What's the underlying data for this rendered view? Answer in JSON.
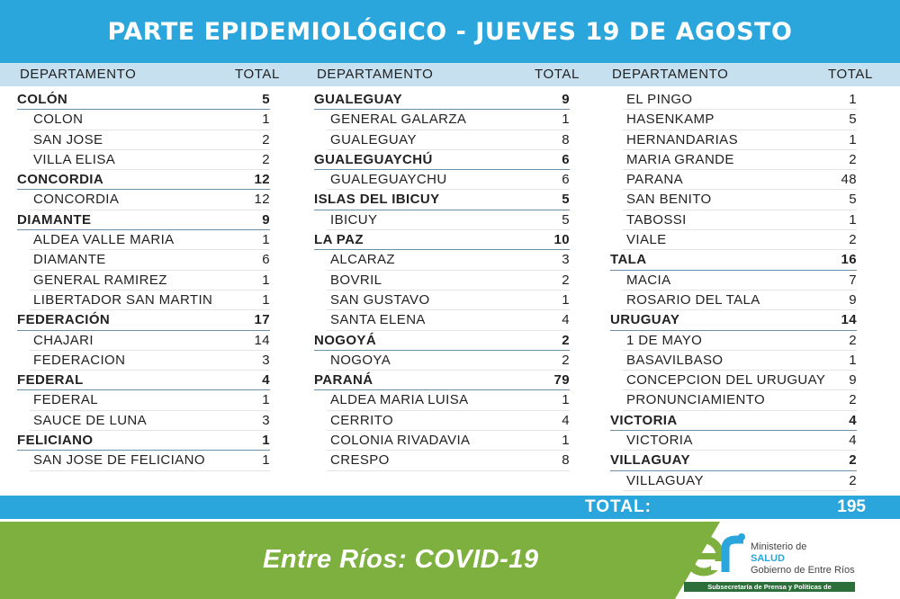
{
  "header": {
    "title": "PARTE EPIDEMIOLÓGICO - JUEVES 19 DE AGOSTO"
  },
  "column_headers": {
    "department": "DEPARTAMENTO",
    "total": "TOTAL"
  },
  "columns": [
    [
      {
        "type": "dept",
        "name": "COLÓN",
        "value": "5"
      },
      {
        "type": "city",
        "name": "COLON",
        "value": "1"
      },
      {
        "type": "city",
        "name": "SAN JOSE",
        "value": "2"
      },
      {
        "type": "city",
        "name": "VILLA ELISA",
        "value": "2"
      },
      {
        "type": "dept",
        "name": "CONCORDIA",
        "value": "12"
      },
      {
        "type": "city",
        "name": "CONCORDIA",
        "value": "12"
      },
      {
        "type": "dept",
        "name": "DIAMANTE",
        "value": "9"
      },
      {
        "type": "city",
        "name": "ALDEA VALLE MARIA",
        "value": "1"
      },
      {
        "type": "city",
        "name": "DIAMANTE",
        "value": "6"
      },
      {
        "type": "city",
        "name": "GENERAL RAMIREZ",
        "value": "1"
      },
      {
        "type": "city",
        "name": "LIBERTADOR SAN MARTIN",
        "value": "1"
      },
      {
        "type": "dept",
        "name": "FEDERACIÓN",
        "value": "17"
      },
      {
        "type": "city",
        "name": "CHAJARI",
        "value": "14"
      },
      {
        "type": "city",
        "name": "FEDERACION",
        "value": "3"
      },
      {
        "type": "dept",
        "name": "FEDERAL",
        "value": "4"
      },
      {
        "type": "city",
        "name": "FEDERAL",
        "value": "1"
      },
      {
        "type": "city",
        "name": "SAUCE DE LUNA",
        "value": "3"
      },
      {
        "type": "dept",
        "name": "FELICIANO",
        "value": "1"
      },
      {
        "type": "city",
        "name": "SAN JOSE DE FELICIANO",
        "value": "1"
      }
    ],
    [
      {
        "type": "dept",
        "name": "GUALEGUAY",
        "value": "9"
      },
      {
        "type": "city",
        "name": "GENERAL GALARZA",
        "value": "1"
      },
      {
        "type": "city",
        "name": "GUALEGUAY",
        "value": "8"
      },
      {
        "type": "dept",
        "name": "GUALEGUAYCHÚ",
        "value": "6"
      },
      {
        "type": "city",
        "name": "GUALEGUAYCHU",
        "value": "6"
      },
      {
        "type": "dept",
        "name": "ISLAS DEL IBICUY",
        "value": "5"
      },
      {
        "type": "city",
        "name": "IBICUY",
        "value": "5"
      },
      {
        "type": "dept",
        "name": "LA PAZ",
        "value": "10"
      },
      {
        "type": "city",
        "name": "ALCARAZ",
        "value": "3"
      },
      {
        "type": "city",
        "name": "BOVRIL",
        "value": "2"
      },
      {
        "type": "city",
        "name": "SAN GUSTAVO",
        "value": "1"
      },
      {
        "type": "city",
        "name": "SANTA ELENA",
        "value": "4"
      },
      {
        "type": "dept",
        "name": "NOGOYÁ",
        "value": "2"
      },
      {
        "type": "city",
        "name": "NOGOYA",
        "value": "2"
      },
      {
        "type": "dept",
        "name": "PARANÁ",
        "value": "79"
      },
      {
        "type": "city",
        "name": "ALDEA MARIA LUISA",
        "value": "1"
      },
      {
        "type": "city",
        "name": "CERRITO",
        "value": "4"
      },
      {
        "type": "city",
        "name": "COLONIA RIVADAVIA",
        "value": "1"
      },
      {
        "type": "city",
        "name": "CRESPO",
        "value": "8"
      }
    ],
    [
      {
        "type": "city",
        "name": "EL PINGO",
        "value": "1"
      },
      {
        "type": "city",
        "name": "HASENKAMP",
        "value": "5"
      },
      {
        "type": "city",
        "name": "HERNANDARIAS",
        "value": "1"
      },
      {
        "type": "city",
        "name": "MARIA GRANDE",
        "value": "2"
      },
      {
        "type": "city",
        "name": "PARANA",
        "value": "48"
      },
      {
        "type": "city",
        "name": "SAN BENITO",
        "value": "5"
      },
      {
        "type": "city",
        "name": "TABOSSI",
        "value": "1"
      },
      {
        "type": "city",
        "name": "VIALE",
        "value": "2"
      },
      {
        "type": "dept",
        "name": "TALA",
        "value": "16"
      },
      {
        "type": "city",
        "name": "MACIA",
        "value": "7"
      },
      {
        "type": "city",
        "name": "ROSARIO DEL TALA",
        "value": "9"
      },
      {
        "type": "dept",
        "name": "URUGUAY",
        "value": "14"
      },
      {
        "type": "city",
        "name": "1 DE MAYO",
        "value": "2"
      },
      {
        "type": "city",
        "name": "BASAVILBASO",
        "value": "1"
      },
      {
        "type": "city",
        "name": "CONCEPCION DEL URUGUAY",
        "value": "9"
      },
      {
        "type": "city",
        "name": "PRONUNCIAMIENTO",
        "value": "2"
      },
      {
        "type": "dept",
        "name": "VICTORIA",
        "value": "4"
      },
      {
        "type": "city",
        "name": "VICTORIA",
        "value": "4"
      },
      {
        "type": "dept",
        "name": "VILLAGUAY",
        "value": "2"
      },
      {
        "type": "city",
        "name": "VILLAGUAY",
        "value": "2"
      }
    ]
  ],
  "total": {
    "label": "TOTAL:",
    "value": "195"
  },
  "footer": {
    "slogan": "Entre Ríos: COVID-19",
    "logo_text": "er",
    "ministry_line1": "Ministerio de",
    "ministry_line2": "SALUD",
    "ministry_line3": "Gobierno de Entre Ríos",
    "subsecretaria": "Subsecretaría de Prensa y Políticas de Comunicación"
  },
  "colors": {
    "header_blue": "#2aa6dc",
    "subheader_blue": "#c6e0ef",
    "footer_green": "#7eb03f"
  }
}
